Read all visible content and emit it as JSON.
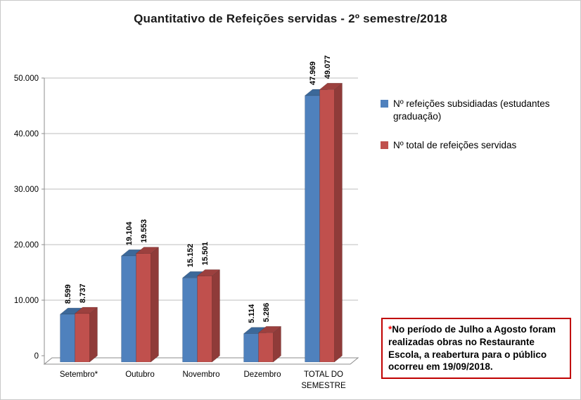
{
  "title": "Quantitativo de Refeições servidas - 2º semestre/2018",
  "chart_data": {
    "type": "bar",
    "style": "3d-clustered-column",
    "categories": [
      "Setembro*",
      "Outubro",
      "Novembro",
      "Dezembro",
      "TOTAL DO SEMESTRE"
    ],
    "category_lines": [
      [
        "Setembro*"
      ],
      [
        "Outubro"
      ],
      [
        "Novembro"
      ],
      [
        "Dezembro"
      ],
      [
        "TOTAL DO",
        "SEMESTRE"
      ]
    ],
    "series": [
      {
        "name": "Nº refeições subsidiadas (estudantes graduação)",
        "color": "#4F81BD",
        "top_color": "#3C6899",
        "side_color": "#375E8B",
        "values": [
          8599,
          19104,
          15152,
          5114,
          47969
        ],
        "labels": [
          "8.599",
          "19.104",
          "15.152",
          "5.114",
          "47.969"
        ]
      },
      {
        "name": "Nº total de refeições servidas",
        "color": "#C0504D",
        "top_color": "#9C403E",
        "side_color": "#8F3B39",
        "values": [
          8737,
          19553,
          15501,
          5286,
          49077
        ],
        "labels": [
          "8.737",
          "19.553",
          "15.501",
          "5.286",
          "49.077"
        ]
      }
    ],
    "xlabel": "",
    "ylabel": "",
    "ylim": [
      0,
      50000
    ],
    "ytick_step": 10000,
    "ytick_labels": [
      "0",
      "10.000",
      "20.000",
      "30.000",
      "40.000",
      "50.000"
    ],
    "grid": true,
    "legend_position": "right"
  },
  "annotation": {
    "asterisk": "*",
    "text": "No período de Julho a Agosto foram realizadas obras no Restaurante Escola, a reabertura para o público ocorreu em 19/09/2018.",
    "border_color": "#C00000",
    "asterisk_color": "#FF0000"
  },
  "colors": {
    "series1": "#4F81BD",
    "series2": "#C0504D",
    "gridline": "#BEBEBE",
    "axis": "#8C8C8C"
  }
}
